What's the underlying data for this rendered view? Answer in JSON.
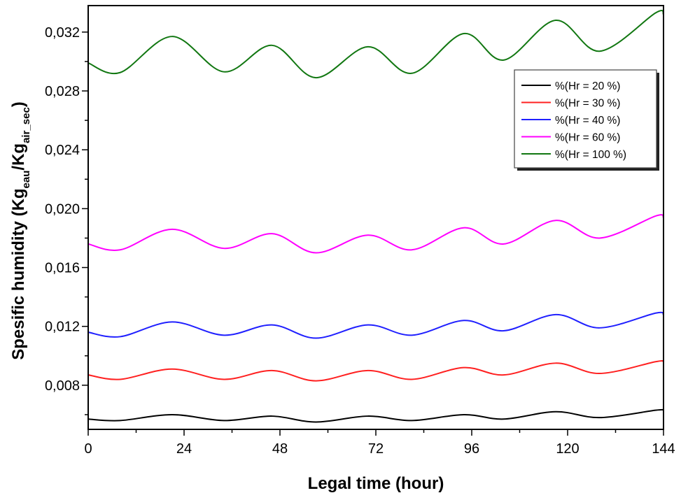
{
  "chart_data": {
    "type": "line",
    "title": "",
    "xlabel": "Legal time (hour)",
    "ylabel": {
      "main": "Spesific humidity (Kg",
      "sub1": "eau",
      "mid": "/Kg",
      "sub2": "air_sec",
      "end": ")"
    },
    "xlim": [
      0,
      144
    ],
    "ylim": [
      0.005,
      0.0338
    ],
    "xticks": [
      0,
      24,
      48,
      72,
      96,
      120,
      144
    ],
    "xtick_labels": [
      "0",
      "24",
      "48",
      "72",
      "96",
      "120",
      "144"
    ],
    "yticks": [
      0.008,
      0.012,
      0.016,
      0.02,
      0.024,
      0.028,
      0.032
    ],
    "ytick_labels": [
      "0,008",
      "0,012",
      "0,016",
      "0,020",
      "0,024",
      "0,028",
      "0,032"
    ],
    "grid": false,
    "legend_position": "top-right",
    "x": [
      0,
      8,
      21,
      34,
      46,
      57,
      70,
      81,
      94,
      104,
      117,
      128,
      142,
      144
    ],
    "series": [
      {
        "name": "%(Hr = 20 %)",
        "color": "#000000",
        "values": [
          0.0057,
          0.0056,
          0.006,
          0.0056,
          0.0059,
          0.0055,
          0.0059,
          0.0056,
          0.006,
          0.0057,
          0.0062,
          0.0058,
          0.0063,
          0.0063
        ]
      },
      {
        "name": "%(Hr = 30 %)",
        "color": "#ff2020",
        "values": [
          0.0087,
          0.0084,
          0.0091,
          0.0084,
          0.009,
          0.0083,
          0.009,
          0.0084,
          0.0092,
          0.0087,
          0.0095,
          0.0088,
          0.0096,
          0.0096
        ]
      },
      {
        "name": "%(Hr = 40 %)",
        "color": "#2020ff",
        "values": [
          0.0116,
          0.0113,
          0.0123,
          0.0114,
          0.0121,
          0.0112,
          0.0121,
          0.0114,
          0.0124,
          0.0117,
          0.0128,
          0.0119,
          0.0129,
          0.0128
        ]
      },
      {
        "name": "%(Hr = 60 %)",
        "color": "#ff00ff",
        "values": [
          0.0176,
          0.0172,
          0.0186,
          0.0173,
          0.0183,
          0.017,
          0.0182,
          0.0172,
          0.0187,
          0.0176,
          0.0192,
          0.018,
          0.0195,
          0.0194
        ]
      },
      {
        "name": "%(Hr = 100 %)",
        "color": "#117711",
        "values": [
          0.0299,
          0.02925,
          0.0317,
          0.0293,
          0.0311,
          0.0289,
          0.031,
          0.0292,
          0.0319,
          0.0301,
          0.0328,
          0.0307,
          0.0333,
          0.0332
        ]
      }
    ]
  }
}
